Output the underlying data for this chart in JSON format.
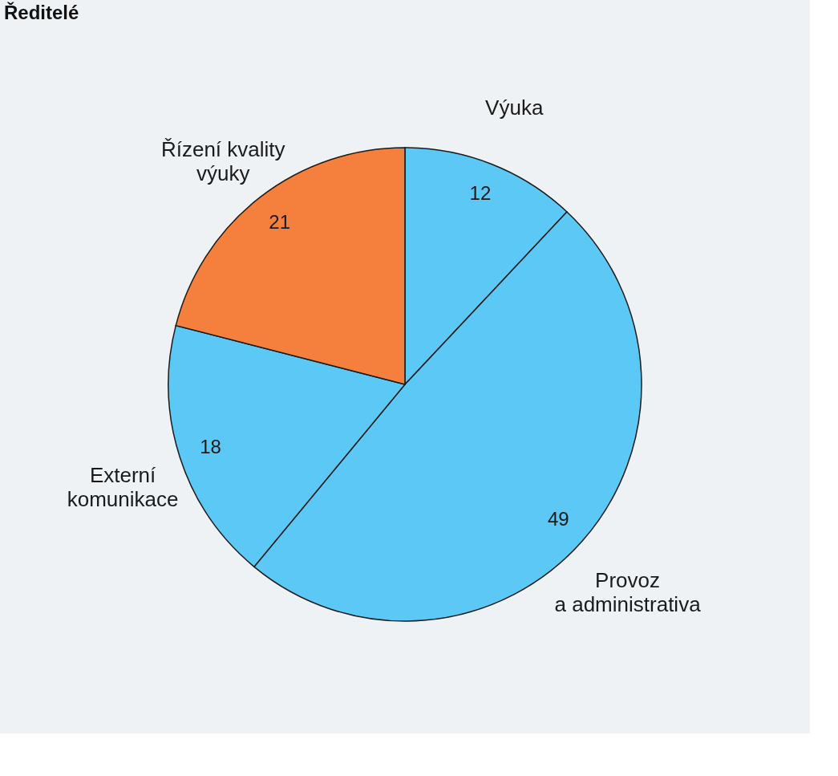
{
  "chart_data": {
    "type": "pie",
    "title": "Ředitelé",
    "categories": [
      "Výuka",
      "Provoz\na administrativa",
      "Externí\nkomunikace",
      "Řízení kvality\nvýuky"
    ],
    "values": [
      12,
      49,
      18,
      21
    ],
    "colors": [
      "#5bc8f5",
      "#5bc8f5",
      "#5bc8f5",
      "#f5803e"
    ],
    "data_labels": true,
    "legend": false
  }
}
